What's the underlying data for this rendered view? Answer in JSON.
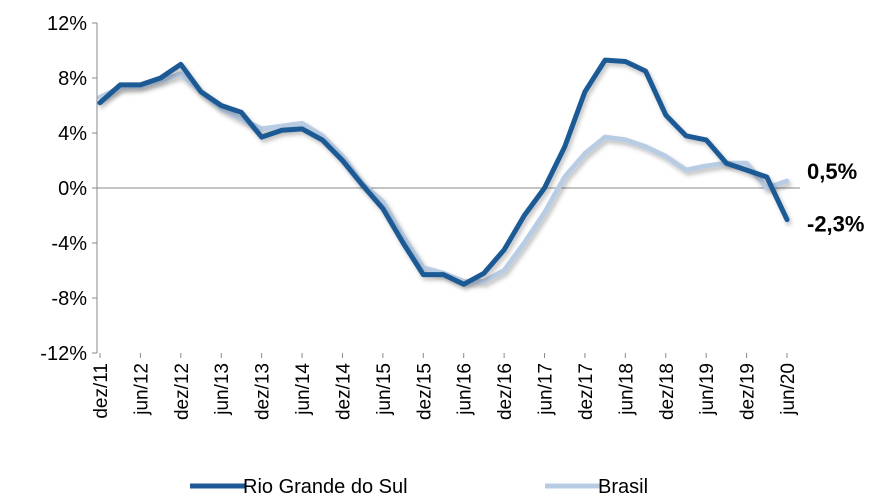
{
  "chart_data": {
    "type": "line",
    "categories": [
      "dez/11",
      null,
      "jun/12",
      null,
      "dez/12",
      null,
      "jun/13",
      null,
      "dez/13",
      null,
      "jun/14",
      null,
      "dez/14",
      null,
      "jun/15",
      null,
      "dez/15",
      null,
      "jun/16",
      null,
      "dez/16",
      null,
      "jun/17",
      null,
      "dez/17",
      null,
      "jun/18",
      null,
      "dez/18",
      null,
      "jun/19",
      null,
      "dez/19",
      null,
      "jun/20"
    ],
    "series": [
      {
        "name": "Rio Grande do Sul",
        "color": "#1f5a96",
        "end_label": "-2,3%",
        "values": [
          6.2,
          7.5,
          7.5,
          8.0,
          9.0,
          7.0,
          6.0,
          5.5,
          3.7,
          4.2,
          4.3,
          3.5,
          2.0,
          0.2,
          -1.5,
          -4.0,
          -6.3,
          -6.3,
          -7.0,
          -6.2,
          -4.5,
          -2.0,
          0.0,
          3.0,
          7.0,
          9.3,
          9.2,
          8.5,
          5.3,
          3.8,
          3.5,
          1.8,
          1.3,
          0.8,
          -2.3
        ]
      },
      {
        "name": "Brasil",
        "color": "#b8cce4",
        "end_label": "0,5%",
        "values": [
          6.6,
          7.3,
          7.4,
          7.8,
          8.3,
          7.0,
          5.8,
          5.0,
          4.3,
          4.5,
          4.7,
          3.8,
          2.3,
          0.3,
          -1.0,
          -3.5,
          -5.8,
          -6.2,
          -6.8,
          -6.8,
          -6.0,
          -4.0,
          -1.8,
          0.8,
          2.5,
          3.7,
          3.5,
          3.0,
          2.3,
          1.3,
          1.6,
          1.8,
          1.8,
          0.0,
          0.5
        ]
      }
    ],
    "ylim": [
      -12,
      12
    ],
    "yticks": [
      {
        "value": -12,
        "label": "-12%"
      },
      {
        "value": -8,
        "label": "-8%"
      },
      {
        "value": -4,
        "label": "-4%"
      },
      {
        "value": 0,
        "label": "0%"
      },
      {
        "value": 4,
        "label": "4%"
      },
      {
        "value": 8,
        "label": "8%"
      },
      {
        "value": 12,
        "label": "12%"
      }
    ],
    "legend": "bottom"
  }
}
